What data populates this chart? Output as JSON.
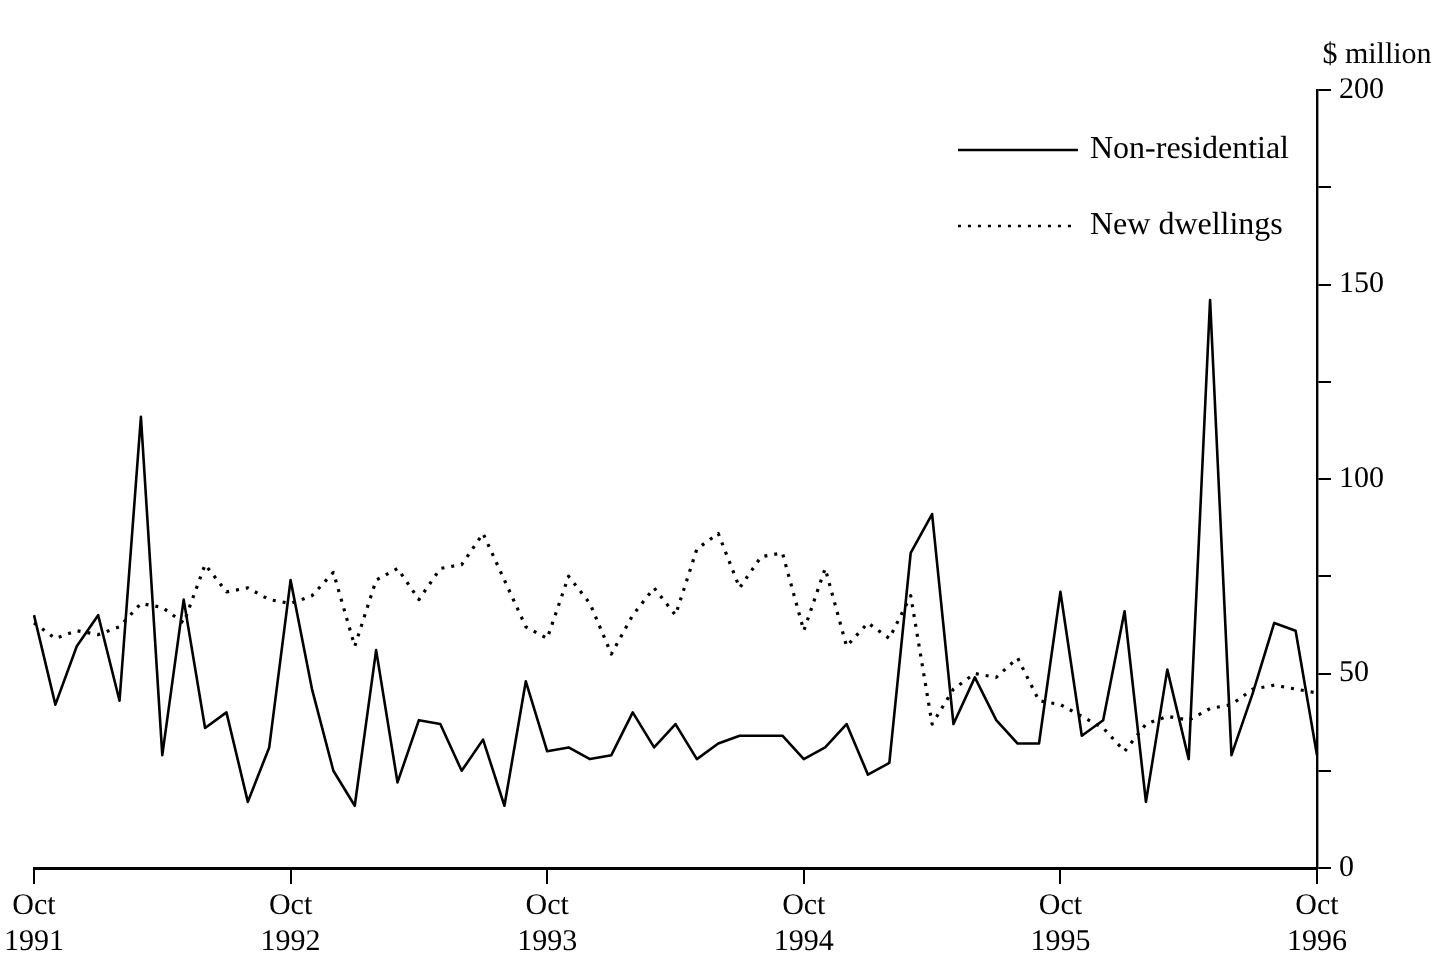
{
  "chart_data": {
    "type": "line",
    "categories": [
      "Oct 1991",
      null,
      null,
      null,
      null,
      null,
      null,
      null,
      null,
      null,
      null,
      null,
      "Oct 1992",
      null,
      null,
      null,
      null,
      null,
      null,
      null,
      null,
      null,
      null,
      null,
      "Oct 1993",
      null,
      null,
      null,
      null,
      null,
      null,
      null,
      null,
      null,
      null,
      null,
      "Oct 1994",
      null,
      null,
      null,
      null,
      null,
      null,
      null,
      null,
      null,
      null,
      null,
      "Oct 1995",
      null,
      null,
      null,
      null,
      null,
      null,
      null,
      null,
      null,
      null,
      null,
      "Oct 1996"
    ],
    "series": [
      {
        "name": "Non-residential",
        "color": "#000000",
        "line_style": "solid",
        "values": [
          65,
          42,
          57,
          65,
          43,
          116,
          29,
          69,
          36,
          40,
          17,
          31,
          74,
          46,
          25,
          16,
          56,
          22,
          38,
          37,
          25,
          33,
          16,
          48,
          30,
          31,
          28,
          29,
          40,
          31,
          37,
          28,
          32,
          34,
          34,
          34,
          28,
          31,
          37,
          24,
          27,
          81,
          91,
          37,
          49,
          38,
          32,
          32,
          71,
          34,
          38,
          66,
          17,
          51,
          28,
          146,
          29,
          45,
          63,
          61,
          29
        ]
      },
      {
        "name": "New dwellings",
        "color": "#000000",
        "line_style": "dotted",
        "values": [
          63,
          59,
          61,
          60,
          62,
          68,
          67,
          63,
          78,
          71,
          72,
          69,
          68,
          70,
          76,
          57,
          74,
          77,
          69,
          77,
          78,
          86,
          74,
          62,
          59,
          75,
          68,
          55,
          65,
          72,
          65,
          82,
          86,
          72,
          80,
          81,
          61,
          77,
          57,
          63,
          59,
          70,
          37,
          46,
          50,
          49,
          54,
          43,
          42,
          39,
          36,
          30,
          37,
          39,
          38,
          41,
          42,
          46,
          47,
          46,
          45
        ]
      }
    ],
    "ylabel": "$ million",
    "ylim": [
      0,
      200
    ],
    "yticks": [
      0,
      {
        "value": 25,
        "label": null
      },
      50,
      {
        "value": 75,
        "label": null
      },
      100,
      {
        "value": 125,
        "label": null
      },
      150,
      {
        "value": 175,
        "label": null
      },
      200
    ],
    "grid": false,
    "legend": "top right",
    "marker": "none"
  }
}
